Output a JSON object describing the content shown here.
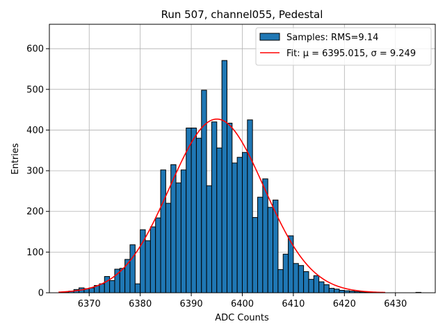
{
  "chart_data": {
    "type": "bar",
    "title": "Run 507, channel055, Pedestal",
    "xlabel": "ADC Counts",
    "ylabel": "Entries",
    "xlim": [
      6362.2,
      6437.8
    ],
    "ylim": [
      0,
      660
    ],
    "xticks": [
      6370,
      6380,
      6390,
      6400,
      6410,
      6420,
      6430
    ],
    "yticks": [
      0,
      100,
      200,
      300,
      400,
      500,
      600
    ],
    "grid": true,
    "bin_width": 1,
    "bar_color": "#1f77b4",
    "fit_color": "#ff0000",
    "bins": [
      6365,
      6366,
      6367,
      6368,
      6369,
      6370,
      6371,
      6372,
      6373,
      6374,
      6375,
      6376,
      6377,
      6378,
      6379,
      6380,
      6381,
      6382,
      6383,
      6384,
      6385,
      6386,
      6387,
      6388,
      6389,
      6390,
      6391,
      6392,
      6393,
      6394,
      6395,
      6396,
      6397,
      6398,
      6399,
      6400,
      6401,
      6402,
      6403,
      6404,
      6405,
      6406,
      6407,
      6408,
      6409,
      6410,
      6411,
      6412,
      6413,
      6414,
      6415,
      6416,
      6417,
      6418,
      6419,
      6420,
      6421,
      6422,
      6423,
      6424,
      6425,
      6426,
      6427,
      6428,
      6429,
      6430,
      6431,
      6432,
      6433,
      6434
    ],
    "values": [
      2,
      4,
      8,
      12,
      10,
      12,
      18,
      22,
      40,
      30,
      58,
      60,
      82,
      118,
      22,
      155,
      128,
      162,
      184,
      302,
      220,
      315,
      270,
      302,
      405,
      405,
      380,
      498,
      263,
      420,
      356,
      571,
      417,
      319,
      333,
      345,
      425,
      185,
      235,
      280,
      210,
      228,
      57,
      95,
      140,
      72,
      67,
      52,
      33,
      42,
      27,
      20,
      11,
      9,
      6,
      5,
      4,
      3,
      2,
      1,
      1,
      1,
      0,
      0,
      0,
      0,
      0,
      0,
      0,
      1
    ],
    "fit": {
      "mu": 6395.015,
      "sigma": 9.249,
      "amplitude": 427,
      "x_range": [
        6364,
        6428
      ]
    },
    "legend": {
      "position": "top-right",
      "entries": [
        {
          "label": "Samples: RMS=9.14",
          "kind": "patch"
        },
        {
          "label": "Fit: μ = 6395.015, σ = 9.249",
          "kind": "line"
        }
      ]
    }
  }
}
